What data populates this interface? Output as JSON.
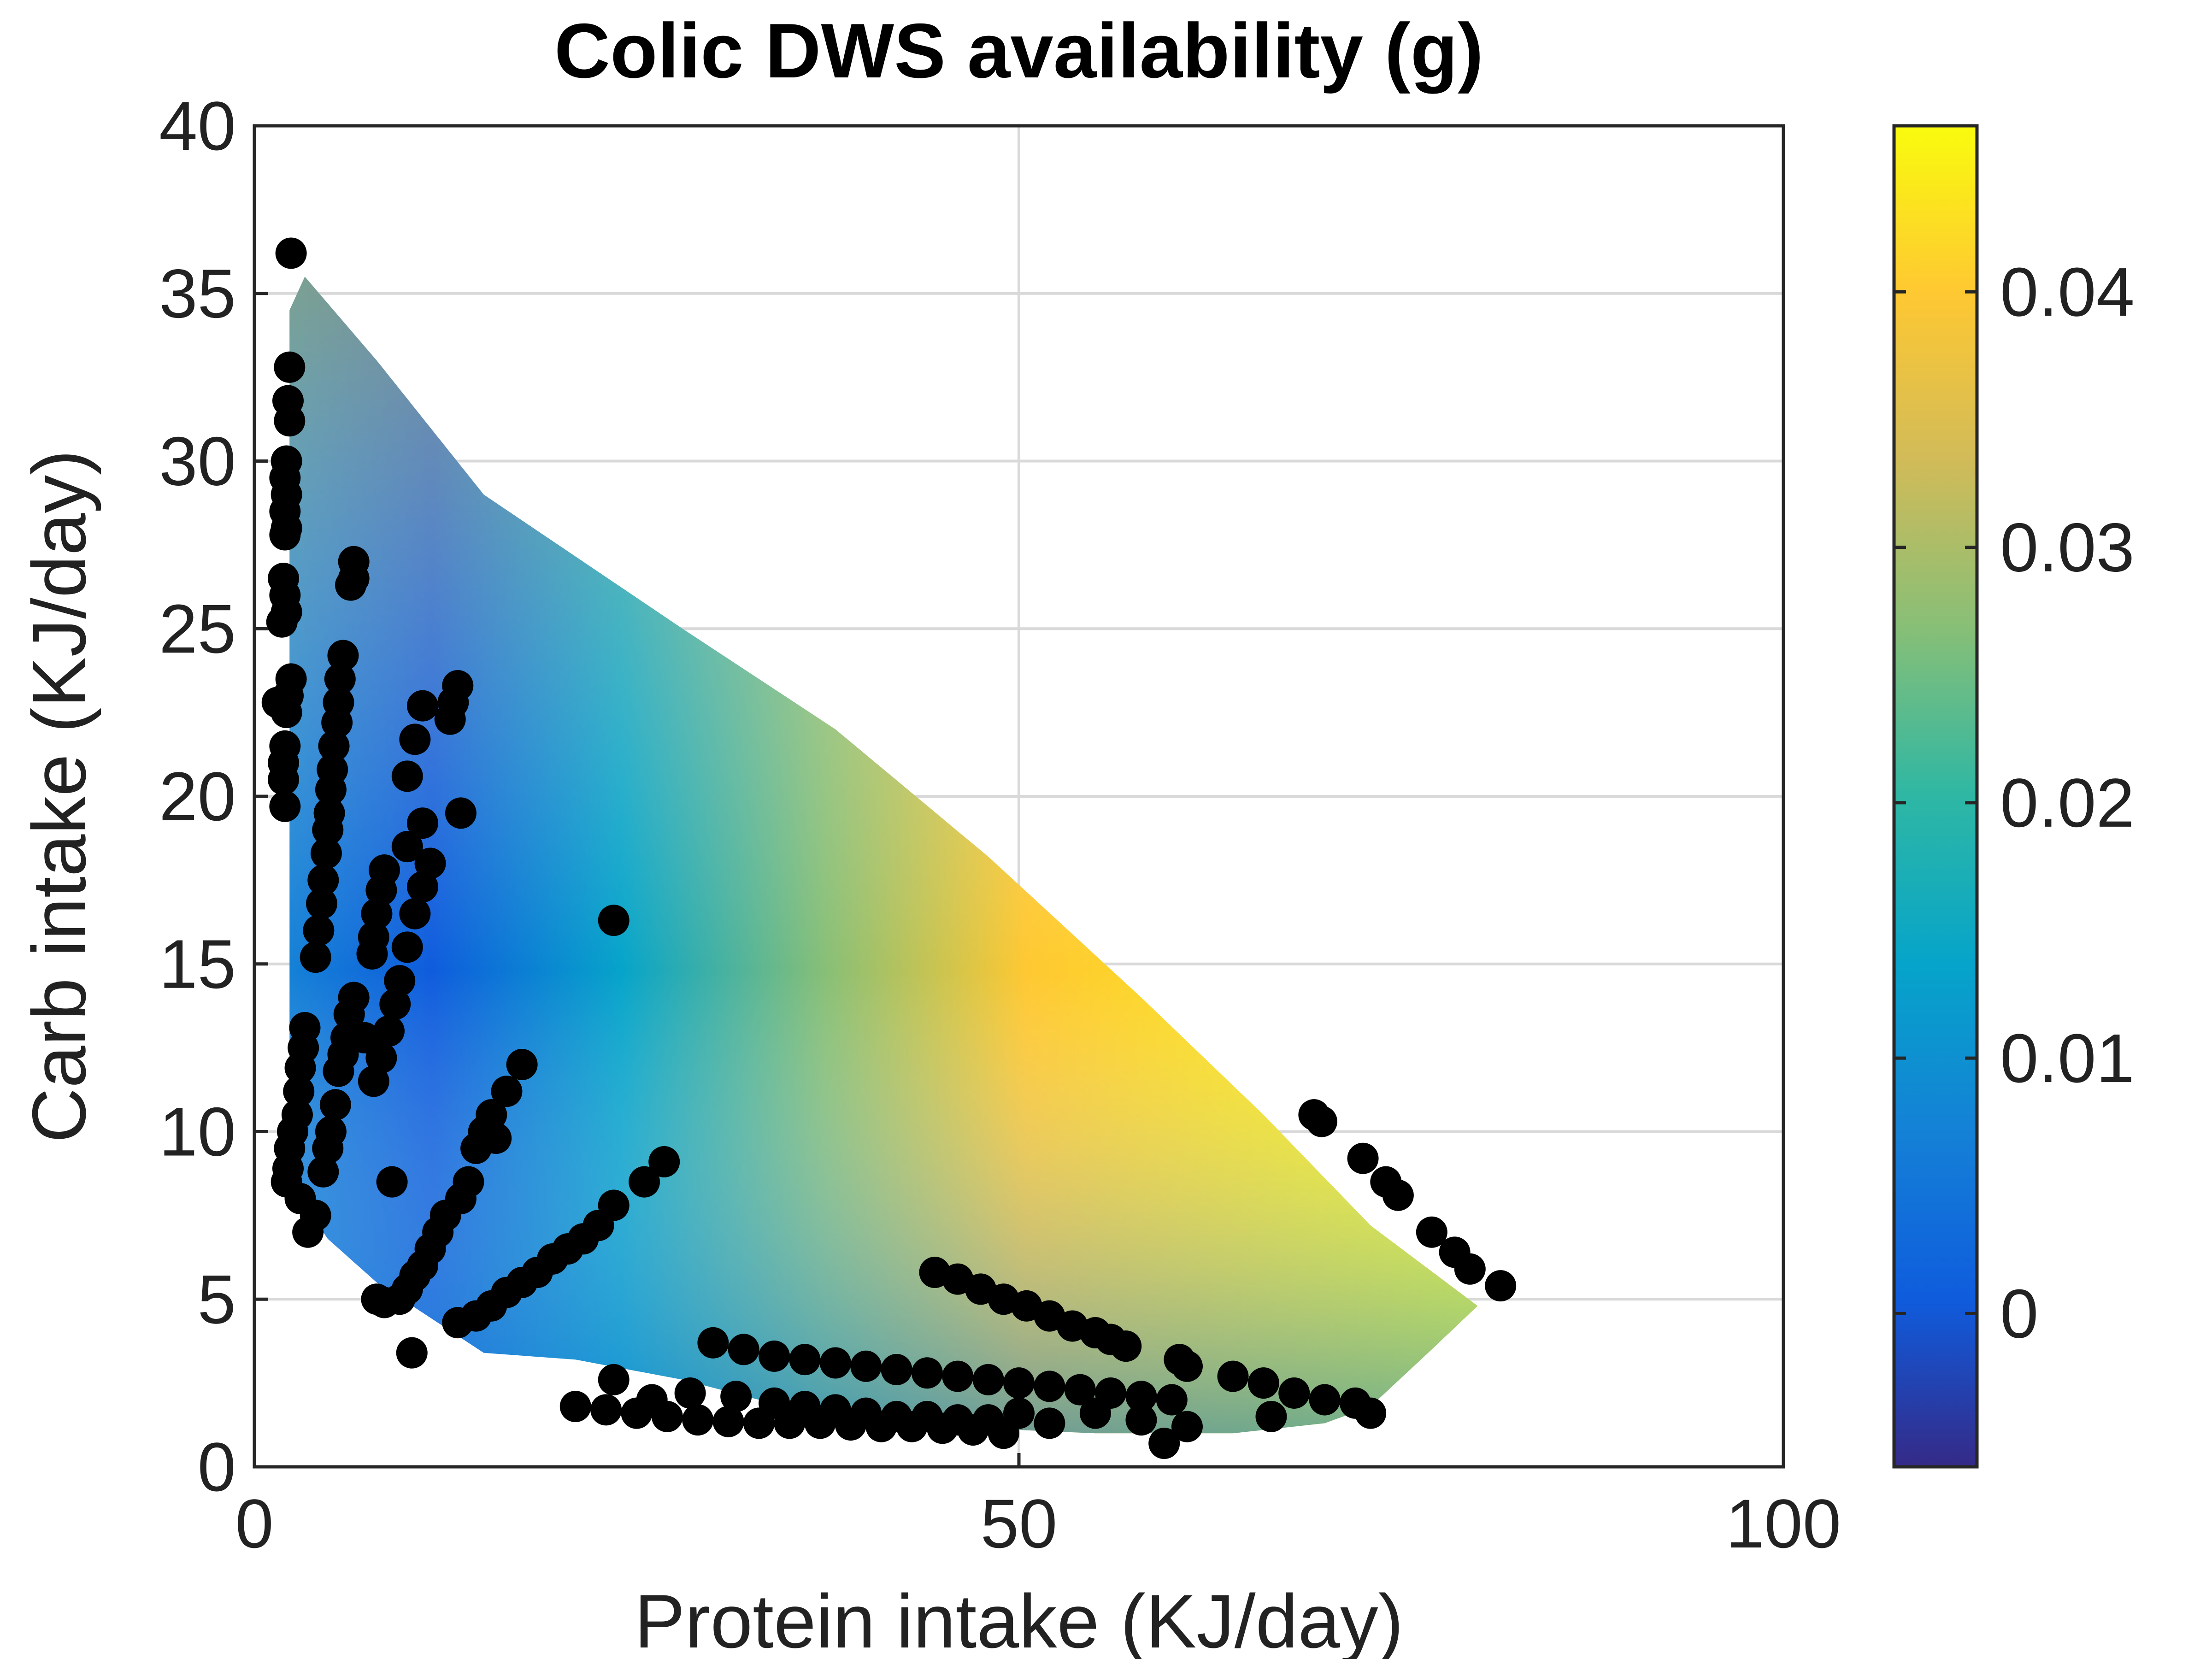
{
  "chart_data": {
    "type": "heatmap",
    "title": "Colic DWS availability (g)",
    "xlabel": "Protein intake (KJ/day)",
    "ylabel": "Carb intake (KJ/day)",
    "xlim": [
      0,
      100
    ],
    "ylim": [
      0,
      40
    ],
    "xticks": [
      "0",
      "50",
      "100"
    ],
    "yticks": [
      "0",
      "5",
      "10",
      "15",
      "20",
      "25",
      "30",
      "35",
      "40"
    ],
    "grid": true,
    "colorbar": {
      "range": [
        -0.006,
        0.0465
      ],
      "ticks": [
        "0",
        "0.01",
        "0.02",
        "0.03",
        "0.04"
      ],
      "tick_values": [
        0,
        0.01,
        0.02,
        0.03,
        0.04
      ],
      "colormap": "parula",
      "colors": [
        "#352a87",
        "#0f5cdd",
        "#1481d6",
        "#06a4ca",
        "#2eb7a4",
        "#87bf77",
        "#d1bb59",
        "#fec832",
        "#f9fb0e"
      ]
    },
    "surface_region": [
      [
        2.3,
        34.5
      ],
      [
        3.3,
        35.5
      ],
      [
        8,
        33
      ],
      [
        15,
        29
      ],
      [
        28,
        25
      ],
      [
        38,
        22
      ],
      [
        48,
        18.2
      ],
      [
        58,
        14
      ],
      [
        66,
        10.5
      ],
      [
        73,
        7.2
      ],
      [
        80,
        4.8
      ],
      [
        77,
        3.5
      ],
      [
        73,
        1.8
      ],
      [
        70,
        1.3
      ],
      [
        64,
        1.0
      ],
      [
        55,
        1.0
      ],
      [
        40,
        1.3
      ],
      [
        33,
        2.0
      ],
      [
        28,
        2.6
      ],
      [
        21,
        3.2
      ],
      [
        15,
        3.4
      ],
      [
        8,
        5.5
      ],
      [
        4.8,
        6.8
      ],
      [
        2.3,
        8.5
      ]
    ],
    "points": [
      [
        2.4,
        36.2
      ],
      [
        2.3,
        32.8
      ],
      [
        2.2,
        31.8
      ],
      [
        2.3,
        31.2
      ],
      [
        2.1,
        30.0
      ],
      [
        2.0,
        29.5
      ],
      [
        2.1,
        29.0
      ],
      [
        2.0,
        28.5
      ],
      [
        2.1,
        28.0
      ],
      [
        2.0,
        27.8
      ],
      [
        1.9,
        26.5
      ],
      [
        2.0,
        26.0
      ],
      [
        2.1,
        25.5
      ],
      [
        1.8,
        25.2
      ],
      [
        1.5,
        22.8
      ],
      [
        2.4,
        23.5
      ],
      [
        2.2,
        23.0
      ],
      [
        2.1,
        22.5
      ],
      [
        2.0,
        21.5
      ],
      [
        1.9,
        21.0
      ],
      [
        1.9,
        20.5
      ],
      [
        2.0,
        19.7
      ],
      [
        6.5,
        27.0
      ],
      [
        6.5,
        26.5
      ],
      [
        6.3,
        26.3
      ],
      [
        5.8,
        24.2
      ],
      [
        5.6,
        23.5
      ],
      [
        5.5,
        22.8
      ],
      [
        5.4,
        22.2
      ],
      [
        5.2,
        21.5
      ],
      [
        5.1,
        20.8
      ],
      [
        5.0,
        20.2
      ],
      [
        4.9,
        19.5
      ],
      [
        4.8,
        19.0
      ],
      [
        4.7,
        18.3
      ],
      [
        4.5,
        17.5
      ],
      [
        4.4,
        16.8
      ],
      [
        4.2,
        16.0
      ],
      [
        4.0,
        15.2
      ],
      [
        13.3,
        23.3
      ],
      [
        13.0,
        22.8
      ],
      [
        12.8,
        22.3
      ],
      [
        11.0,
        22.7
      ],
      [
        10.5,
        21.7
      ],
      [
        10.0,
        20.6
      ],
      [
        13.5,
        19.5
      ],
      [
        11.0,
        19.2
      ],
      [
        10.0,
        18.5
      ],
      [
        8.5,
        17.8
      ],
      [
        8.3,
        17.2
      ],
      [
        8.0,
        16.5
      ],
      [
        7.8,
        15.8
      ],
      [
        7.7,
        15.3
      ],
      [
        11.5,
        18.0
      ],
      [
        11.0,
        17.3
      ],
      [
        10.5,
        16.5
      ],
      [
        10.0,
        15.5
      ],
      [
        9.5,
        14.5
      ],
      [
        9.2,
        13.8
      ],
      [
        8.8,
        13.0
      ],
      [
        8.3,
        12.2
      ],
      [
        7.8,
        11.5
      ],
      [
        6.5,
        14.0
      ],
      [
        6.2,
        13.5
      ],
      [
        6.0,
        12.8
      ],
      [
        5.8,
        12.3
      ],
      [
        5.5,
        11.8
      ],
      [
        7.2,
        12.8
      ],
      [
        3.3,
        13.1
      ],
      [
        3.2,
        12.5
      ],
      [
        3.0,
        11.9
      ],
      [
        2.9,
        11.2
      ],
      [
        2.8,
        10.5
      ],
      [
        5.3,
        10.8
      ],
      [
        5.0,
        10.0
      ],
      [
        4.8,
        9.5
      ],
      [
        4.5,
        8.8
      ],
      [
        2.5,
        10.0
      ],
      [
        2.3,
        9.5
      ],
      [
        2.2,
        8.9
      ],
      [
        2.1,
        8.5
      ],
      [
        3.0,
        8.0
      ],
      [
        3.5,
        7.0
      ],
      [
        4.0,
        7.5
      ],
      [
        17.5,
        12.0
      ],
      [
        16.5,
        11.2
      ],
      [
        15.5,
        10.5
      ],
      [
        15.0,
        10.0
      ],
      [
        14.5,
        9.5
      ],
      [
        14.0,
        8.5
      ],
      [
        13.5,
        8.0
      ],
      [
        12.5,
        7.5
      ],
      [
        12.0,
        7.0
      ],
      [
        11.5,
        6.5
      ],
      [
        11.0,
        6.0
      ],
      [
        10.5,
        5.7
      ],
      [
        10.0,
        5.3
      ],
      [
        9.5,
        5.0
      ],
      [
        8.5,
        4.9
      ],
      [
        8.0,
        5.0
      ],
      [
        9.0,
        8.5
      ],
      [
        15.8,
        9.8
      ],
      [
        26.8,
        9.1
      ],
      [
        25.5,
        8.5
      ],
      [
        23.5,
        7.8
      ],
      [
        22.5,
        7.2
      ],
      [
        21.5,
        6.8
      ],
      [
        20.5,
        6.5
      ],
      [
        19.5,
        6.2
      ],
      [
        18.5,
        5.8
      ],
      [
        17.5,
        5.5
      ],
      [
        16.5,
        5.2
      ],
      [
        15.5,
        4.8
      ],
      [
        14.5,
        4.5
      ],
      [
        13.3,
        4.3
      ],
      [
        23.5,
        16.3
      ],
      [
        10.3,
        3.4
      ],
      [
        44.5,
        5.8
      ],
      [
        46.0,
        5.6
      ],
      [
        47.5,
        5.3
      ],
      [
        49.0,
        5.0
      ],
      [
        50.5,
        4.8
      ],
      [
        52.0,
        4.5
      ],
      [
        53.5,
        4.2
      ],
      [
        55.0,
        4.0
      ],
      [
        56.0,
        3.8
      ],
      [
        57.0,
        3.6
      ],
      [
        30.0,
        3.7
      ],
      [
        32.0,
        3.5
      ],
      [
        34.0,
        3.3
      ],
      [
        36.0,
        3.2
      ],
      [
        38.0,
        3.1
      ],
      [
        40.0,
        3.0
      ],
      [
        42.0,
        2.9
      ],
      [
        44.0,
        2.8
      ],
      [
        46.0,
        2.7
      ],
      [
        48.0,
        2.6
      ],
      [
        50.0,
        2.5
      ],
      [
        52.0,
        2.4
      ],
      [
        54.0,
        2.3
      ],
      [
        56.0,
        2.2
      ],
      [
        58.0,
        2.1
      ],
      [
        60.0,
        2.0
      ],
      [
        60.5,
        3.2
      ],
      [
        61.0,
        3.0
      ],
      [
        64.0,
        2.7
      ],
      [
        66.0,
        2.5
      ],
      [
        68.0,
        2.2
      ],
      [
        70.0,
        2.0
      ],
      [
        72.0,
        1.9
      ],
      [
        73.0,
        1.6
      ],
      [
        66.5,
        1.5
      ],
      [
        21.0,
        1.8
      ],
      [
        23.0,
        1.7
      ],
      [
        25.0,
        1.6
      ],
      [
        27.0,
        1.5
      ],
      [
        29.0,
        1.4
      ],
      [
        31.0,
        1.35
      ],
      [
        33.0,
        1.3
      ],
      [
        35.0,
        1.3
      ],
      [
        37.0,
        1.3
      ],
      [
        39.0,
        1.25
      ],
      [
        41.0,
        1.2
      ],
      [
        43.0,
        1.2
      ],
      [
        45.0,
        1.15
      ],
      [
        47.0,
        1.1
      ],
      [
        49.0,
        1.0
      ],
      [
        23.5,
        2.6
      ],
      [
        26.0,
        2.0
      ],
      [
        28.5,
        2.2
      ],
      [
        31.5,
        2.1
      ],
      [
        34.0,
        1.9
      ],
      [
        36.0,
        1.8
      ],
      [
        38.0,
        1.7
      ],
      [
        40.0,
        1.6
      ],
      [
        42.0,
        1.5
      ],
      [
        44.0,
        1.5
      ],
      [
        46.0,
        1.4
      ],
      [
        48.0,
        1.4
      ],
      [
        50.0,
        1.6
      ],
      [
        52.0,
        1.3
      ],
      [
        55.0,
        1.6
      ],
      [
        58.0,
        1.4
      ],
      [
        61.0,
        1.2
      ],
      [
        59.5,
        0.7
      ],
      [
        69.3,
        10.5
      ],
      [
        69.8,
        10.3
      ],
      [
        72.5,
        9.2
      ],
      [
        74.0,
        8.5
      ],
      [
        74.8,
        8.1
      ],
      [
        77.0,
        7.0
      ],
      [
        78.5,
        6.4
      ],
      [
        79.5,
        5.9
      ],
      [
        81.5,
        5.4
      ]
    ]
  }
}
